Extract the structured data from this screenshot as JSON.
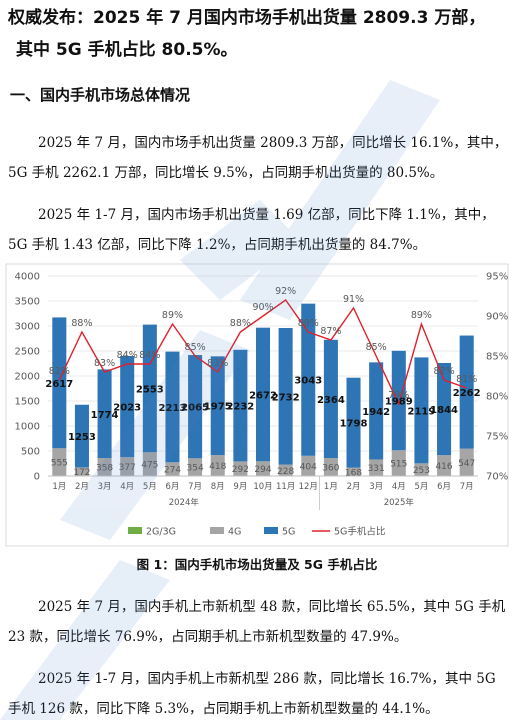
{
  "title_line1": "权威发布：2025 年 7 月国内市场手机出货量 2809.3 万部，",
  "title_line2": "其中 5G 手机占比 80.5%。",
  "section_heading": "一、国内手机市场总体情况",
  "paragraphs": [
    "2025 年 7 月，国内市场手机出货量 2809.3 万部，同比增长 16.1%，其中，5G 手机 2262.1 万部，同比增长 9.5%，占同期手机出货量的 80.5%。",
    "2025 年 1-7 月，国内市场手机出货量 1.69 亿部，同比下降 1.1%，其中，5G 手机 1.43 亿部，同比下降 1.2%，占同期手机出货量的 84.7%。",
    "2025 年 7 月，国内手机上市新机型 48 款，同比增长 65.5%，其中 5G 手机 23 款，同比增长 76.9%，占同期手机上市新机型数量的 47.9%。",
    "2025 年 1-7 月，国内手机上市新机型 286 款，同比增长 16.7%，其中 5G 手机 126 款，同比下降 5.3%，占同期手机上市新机型数量的 44.1%。"
  ],
  "figure_caption": "图 1：国内手机市场出货量及 5G 手机占比",
  "colors": {
    "bar_5g": "#2e75b6",
    "bar_4g": "#a5a5a5",
    "bar_2g3g": "#70ad47",
    "line_ratio": "#e0202a"
  },
  "chart_data": {
    "type": "bar",
    "categories": [
      "1月",
      "2月",
      "3月",
      "4月",
      "5月",
      "6月",
      "7月",
      "8月",
      "9月",
      "10月",
      "11月",
      "12月",
      "1月",
      "2月",
      "3月",
      "4月",
      "5月",
      "6月",
      "7月"
    ],
    "year_labels": [
      "2024年",
      "2025年"
    ],
    "series": [
      {
        "name": "2G/3G",
        "values": [
          0,
          0,
          0,
          0,
          0,
          0,
          0,
          0,
          0,
          0,
          0,
          0,
          0,
          0,
          0,
          0,
          0,
          0,
          0
        ]
      },
      {
        "name": "4G",
        "values": [
          555,
          172,
          358,
          377,
          475,
          274,
          354,
          418,
          292,
          294,
          228,
          404,
          360,
          168,
          331,
          515,
          253,
          416,
          547
        ]
      },
      {
        "name": "5G",
        "values": [
          2617,
          1253,
          1774,
          2023,
          2553,
          2213,
          2065,
          1975,
          2232,
          2672,
          2732,
          3043,
          2364,
          1798,
          1942,
          1989,
          2119,
          1844,
          2262
        ]
      },
      {
        "name": "5G手机占比",
        "axis": "right",
        "values": [
          82,
          88,
          83,
          84,
          84,
          89,
          85,
          83,
          88,
          90,
          92,
          88,
          87,
          91,
          85,
          79,
          89,
          82,
          81
        ]
      }
    ],
    "ratio_labels": [
      "82%",
      "88%",
      "83%",
      "84%",
      "84%",
      "89%",
      "85%",
      "83%",
      "88%",
      "90%",
      "92%",
      "88%",
      "87%",
      "91%",
      "85%",
      "79%",
      "89%",
      "82%",
      "81%"
    ],
    "yaxis_ticks": [
      "0",
      "500",
      "1000",
      "1500",
      "2000",
      "2500",
      "3000",
      "3500",
      "4000"
    ],
    "y2axis_ticks": [
      "70%",
      "75%",
      "80%",
      "85%",
      "90%",
      "95%"
    ],
    "ylim": [
      0,
      4000
    ],
    "y2lim": [
      70,
      95
    ],
    "legend": "bottom"
  }
}
